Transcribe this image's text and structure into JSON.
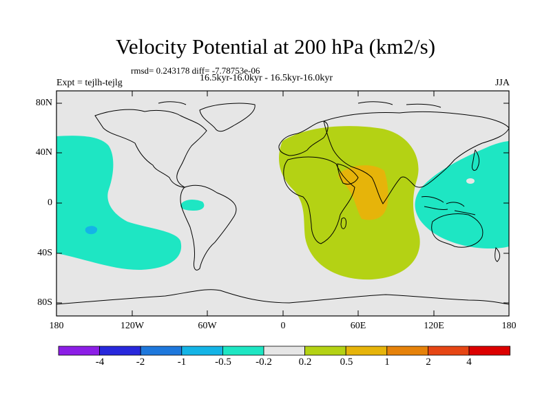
{
  "title": "Velocity Potential at 200 hPa (km2/s)",
  "subtitle_stats": "rmsd= 0.243178 diff= -7.78753e-06",
  "subtitle_periods": "16.5kyr-16.0kyr - 16.5kyr-16.0kyr",
  "left_string": "Expt = tejlh-tejlg",
  "right_string": "JJA",
  "lat_labels": [
    "80N",
    "40N",
    "0",
    "40S",
    "80S"
  ],
  "lon_labels": [
    "180",
    "120W",
    "60W",
    "0",
    "60E",
    "120E",
    "180"
  ],
  "colorbar": {
    "colors": [
      "#8c1ee6",
      "#2828dc",
      "#1e78dc",
      "#14b4e6",
      "#1ee6c3",
      "#e6e6e6",
      "#b4d214",
      "#e6b40a",
      "#e6820a",
      "#e64614",
      "#dc0000"
    ],
    "labels": [
      "-4",
      "-2",
      "-1",
      "-0.5",
      "-0.2",
      "0.2",
      "0.5",
      "1",
      "2",
      "4"
    ]
  },
  "regions": [
    {
      "name": "positive-anomaly-africa-asia",
      "level": "0.2 to 0.5",
      "color": "#b4d214"
    },
    {
      "name": "positive-anomaly-arabia-india",
      "level": "0.5 to 1",
      "color": "#e6b40a"
    },
    {
      "name": "negative-anomaly-east-pacific",
      "level": "-0.5 to -0.2",
      "color": "#1ee6c3"
    },
    {
      "name": "negative-anomaly-west-pacific",
      "level": "-0.5 to -0.2",
      "color": "#1ee6c3"
    },
    {
      "name": "negative-anomaly-amazon",
      "level": "-0.5 to -0.2",
      "color": "#1ee6c3"
    },
    {
      "name": "negative-anomaly-south-pacific-core",
      "level": "-1 to -0.5",
      "color": "#14b4e6"
    }
  ]
}
